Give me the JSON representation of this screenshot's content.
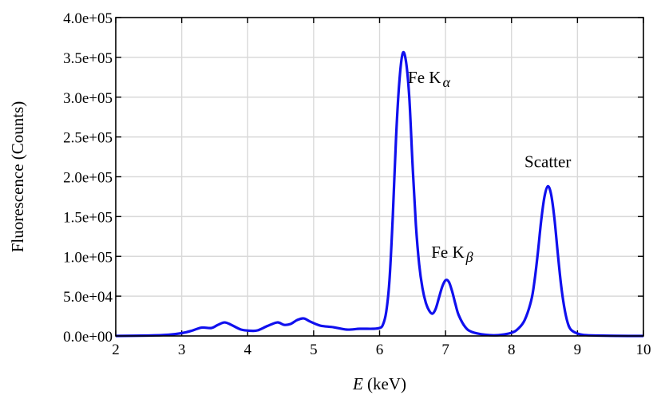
{
  "chart_data": {
    "type": "line",
    "title": "",
    "xlabel": {
      "var": "E",
      "unit": " (keV)"
    },
    "ylabel": "Fluorescence (Counts)",
    "xlim": [
      2,
      10
    ],
    "ylim": [
      0,
      400000
    ],
    "grid": true,
    "x_ticks": [
      "2",
      "3",
      "4",
      "5",
      "6",
      "7",
      "8",
      "9",
      "10"
    ],
    "y_ticks": [
      "0.0e+00",
      "5.0e+04",
      "1.0e+05",
      "1.5e+05",
      "2.0e+05",
      "2.5e+05",
      "3.0e+05",
      "3.5e+05",
      "4.0e+05"
    ],
    "colors": {
      "series": "#1010ee",
      "grid": "#d9d9d9",
      "axis": "#000000"
    },
    "series": [
      {
        "x": [
          2.0,
          2.5,
          2.8,
          3.0,
          3.15,
          3.3,
          3.45,
          3.55,
          3.65,
          3.75,
          3.9,
          4.05,
          4.15,
          4.3,
          4.45,
          4.55,
          4.65,
          4.75,
          4.85,
          4.95,
          5.1,
          5.3,
          5.5,
          5.7,
          5.9,
          6.0,
          6.05,
          6.1,
          6.15,
          6.2,
          6.25,
          6.3,
          6.35,
          6.4,
          6.45,
          6.5,
          6.55,
          6.6,
          6.65,
          6.7,
          6.75,
          6.8,
          6.85,
          6.9,
          6.95,
          7.0,
          7.05,
          7.1,
          7.15,
          7.2,
          7.3,
          7.4,
          7.6,
          7.8,
          8.0,
          8.1,
          8.2,
          8.3,
          8.35,
          8.4,
          8.45,
          8.5,
          8.55,
          8.6,
          8.65,
          8.7,
          8.75,
          8.8,
          8.85,
          8.9,
          9.0,
          9.1,
          9.3,
          9.6,
          10.0
        ],
        "y": [
          0,
          500,
          1500,
          3500,
          6500,
          10500,
          10000,
          14000,
          17000,
          14000,
          8000,
          6500,
          7000,
          12500,
          17000,
          14000,
          15000,
          20000,
          22000,
          18000,
          13000,
          11000,
          8000,
          9000,
          9000,
          10000,
          14000,
          30000,
          70000,
          150000,
          250000,
          320000,
          355000,
          345000,
          300000,
          215000,
          140000,
          90000,
          60000,
          42000,
          32000,
          28000,
          34000,
          48000,
          62000,
          70000,
          68000,
          56000,
          40000,
          26000,
          11000,
          5000,
          1500,
          1000,
          4000,
          9000,
          20000,
          45000,
          70000,
          105000,
          145000,
          175000,
          188000,
          178000,
          148000,
          105000,
          65000,
          36000,
          17000,
          8000,
          3000,
          1200,
          500,
          100,
          0
        ]
      }
    ],
    "annotations": [
      {
        "base": "Fe K",
        "greek": "α",
        "x": 6.75,
        "y": 318000
      },
      {
        "base": "Fe K",
        "greek": "β",
        "x": 7.1,
        "y": 98000
      },
      {
        "base": "Scatter",
        "greek": "",
        "x": 8.55,
        "y": 212000
      }
    ]
  }
}
